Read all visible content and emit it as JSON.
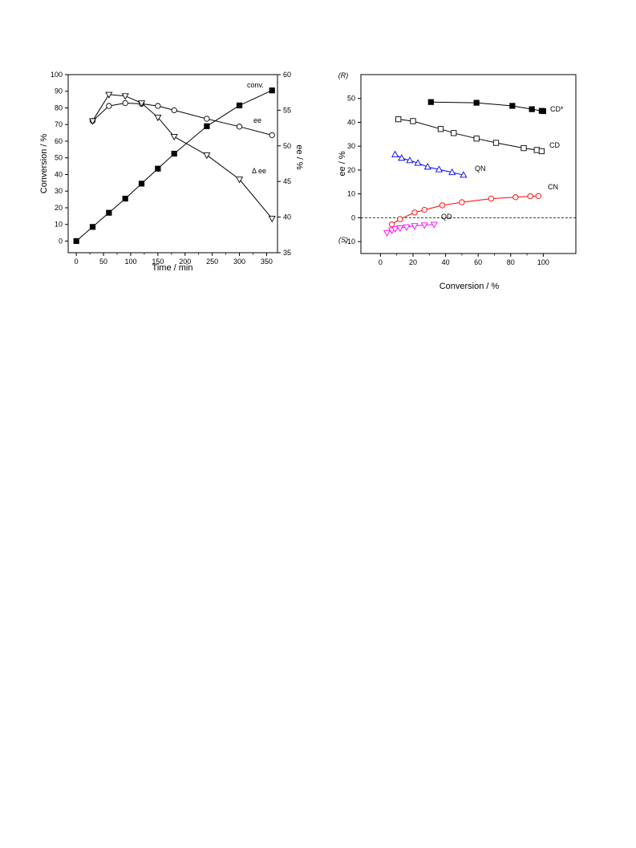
{
  "chart_data": [
    {
      "type": "line",
      "xlabel": "Time / min",
      "ylabel": "Conversion / %",
      "y2label": "ee / %",
      "xlim": [
        -15,
        370
      ],
      "ylim": [
        -7,
        100
      ],
      "y2lim": [
        35,
        60
      ],
      "xticks": [
        0,
        50,
        100,
        150,
        200,
        250,
        300,
        350
      ],
      "yticks": [
        0,
        10,
        20,
        30,
        40,
        50,
        60,
        70,
        80,
        90,
        100
      ],
      "y2ticks": [
        35,
        40,
        45,
        50,
        55,
        60
      ],
      "grid": false,
      "series": [
        {
          "name": "conv.",
          "axis": "left",
          "marker": "filled-square",
          "color": "#000000",
          "x": [
            0,
            30,
            60,
            90,
            120,
            150,
            180,
            240,
            300,
            360
          ],
          "y": [
            0,
            8.5,
            17,
            25.5,
            34.5,
            43.5,
            52.5,
            69,
            81.5,
            90.5
          ]
        },
        {
          "name": "ee",
          "axis": "right",
          "marker": "open-circle",
          "color": "#000000",
          "x": [
            30,
            60,
            90,
            120,
            150,
            180,
            240,
            300,
            360
          ],
          "y": [
            53.5,
            55.6,
            56.0,
            55.9,
            55.6,
            55.0,
            53.8,
            52.7,
            51.5
          ]
        },
        {
          "name": "Δ ee",
          "axis": "right",
          "marker": "open-triangle-down",
          "color": "#000000",
          "x": [
            30,
            60,
            90,
            120,
            150,
            180,
            240,
            300,
            360
          ],
          "y": [
            53.5,
            57.2,
            57.0,
            56.0,
            54.0,
            51.3,
            48.7,
            45.3,
            39.8
          ]
        }
      ]
    },
    {
      "type": "line",
      "xlabel": "Conversion / %",
      "ylabel": "ee / %",
      "xlim": [
        -12,
        120
      ],
      "ylim": [
        -15,
        60
      ],
      "xticks": [
        0,
        20,
        40,
        60,
        80,
        100
      ],
      "yticks": [
        -10,
        0,
        10,
        20,
        30,
        40,
        50
      ],
      "yextra_top": "(R)",
      "yextra_bottom": "(S)",
      "zero_line": "dashed",
      "grid": false,
      "series": [
        {
          "name": "CD*",
          "marker": "filled-square",
          "color": "#000000",
          "x": [
            31,
            59,
            81,
            93,
            99,
            100
          ],
          "y": [
            48.5,
            48.2,
            46.9,
            45.5,
            44.8,
            44.7
          ]
        },
        {
          "name": "CD",
          "marker": "open-square",
          "color": "#000000",
          "x": [
            11,
            20,
            37,
            45,
            59,
            71,
            88,
            96,
            99
          ],
          "y": [
            41.3,
            40.5,
            37.2,
            35.5,
            33.2,
            31.4,
            29.2,
            28.4,
            27.9
          ]
        },
        {
          "name": "QN",
          "marker": "open-triangle-up",
          "color": "#0000ff",
          "x": [
            9,
            13,
            18,
            23,
            29,
            36,
            44,
            51
          ],
          "y": [
            26.5,
            25.0,
            24.0,
            22.9,
            21.3,
            20.2,
            19.0,
            17.9
          ]
        },
        {
          "name": "CN",
          "marker": "open-circle",
          "color": "#ff0000",
          "x": [
            7,
            12,
            21,
            27,
            38,
            50,
            68,
            83,
            92,
            97
          ],
          "y": [
            -2.8,
            -0.6,
            2.2,
            3.3,
            5.2,
            6.5,
            8.0,
            8.6,
            9.0,
            9.1
          ]
        },
        {
          "name": "QD",
          "marker": "open-triangle-down",
          "color": "#ff00ff",
          "x": [
            4,
            7,
            9,
            12,
            16,
            21,
            27,
            33
          ],
          "y": [
            -6.3,
            -5.2,
            -4.6,
            -4.3,
            -3.9,
            -3.4,
            -3.1,
            -2.8
          ]
        }
      ]
    }
  ]
}
